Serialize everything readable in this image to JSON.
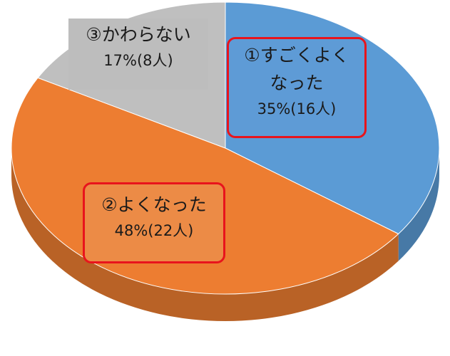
{
  "chart_data": {
    "type": "pie",
    "slices": [
      {
        "name": "①すごくよくなった",
        "name_lines": [
          "①すごくよく",
          "なった"
        ],
        "percent": 35,
        "count": 16,
        "value_label": "35%(16人)",
        "color": "#5b9bd5",
        "highlighted": true
      },
      {
        "name": "②よくなった",
        "name_lines": [
          "②よくなった"
        ],
        "percent": 48,
        "count": 22,
        "value_label": "48%(22人)",
        "color": "#ed7d31",
        "highlighted": true
      },
      {
        "name": "③かわらない",
        "name_lines": [
          "③かわらない"
        ],
        "percent": 17,
        "count": 8,
        "value_label": "17%(8人)",
        "color": "#bfbfbf",
        "highlighted": false
      }
    ],
    "style": "3d-tilted",
    "start_angle": "12 o'clock, clockwise",
    "highlight_color": "#ff0000"
  }
}
